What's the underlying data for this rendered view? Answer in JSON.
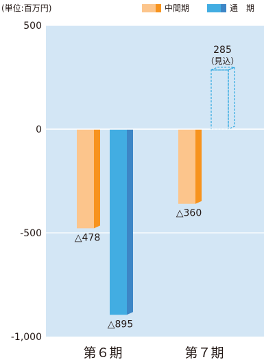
{
  "unit_label": "(単位:百万円)",
  "legend": [
    {
      "label": "中間期",
      "color": "#fcc58c",
      "side_color": "#f7931e"
    },
    {
      "label": "通　期",
      "color": "#42ade2",
      "side_color": "#3d86c6"
    }
  ],
  "chart_data": {
    "type": "bar",
    "categories": [
      "第６期",
      "第７期"
    ],
    "ylim": [
      -1000,
      500
    ],
    "yticks": [
      500,
      0,
      -500,
      -1000
    ],
    "ytick_labels": [
      "500",
      "0",
      "-500",
      "-1,000"
    ],
    "grid": true,
    "legend_position": "top-right",
    "series": [
      {
        "name": "中間期",
        "values": [
          -478,
          -360
        ],
        "labels": [
          "△478",
          "△360"
        ]
      },
      {
        "name": "通　期",
        "values": [
          -895,
          285
        ],
        "labels": [
          "△895",
          "285"
        ],
        "forecast": [
          false,
          true
        ],
        "forecast_note": "（見込）"
      }
    ]
  }
}
